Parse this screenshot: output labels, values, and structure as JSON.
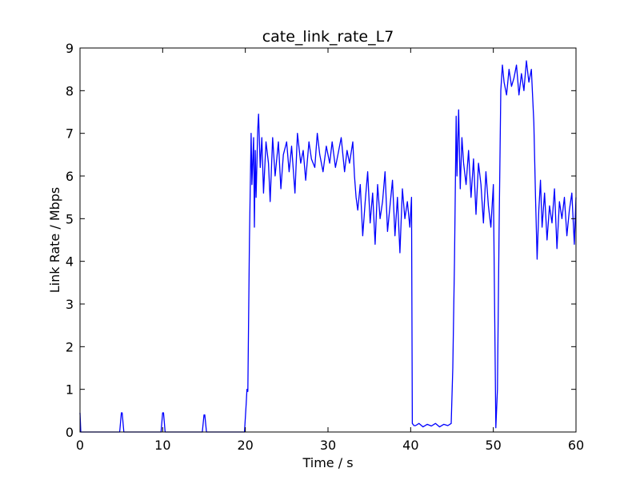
{
  "chart_data": {
    "type": "line",
    "title": "cate_link_rate_L7",
    "xlabel": "Time / s",
    "ylabel": "Link Rate / Mbps",
    "xlim": [
      0,
      60
    ],
    "ylim": [
      0,
      9
    ],
    "xticks": [
      0,
      10,
      20,
      30,
      40,
      50,
      60
    ],
    "yticks": [
      0,
      1,
      2,
      3,
      4,
      5,
      6,
      7,
      8,
      9
    ],
    "grid": false,
    "series": [
      {
        "color": "#0000ff",
        "x": [
          0,
          0.1,
          0.2,
          4.8,
          5.0,
          5.1,
          5.3,
          9.8,
          10.0,
          10.1,
          10.3,
          14.8,
          15.0,
          15.1,
          15.3,
          19.9,
          20.1,
          20.2,
          20.3,
          20.5,
          20.7,
          20.8,
          21.0,
          21.1,
          21.2,
          21.3,
          21.5,
          21.6,
          21.8,
          22.0,
          22.2,
          22.5,
          22.8,
          23.0,
          23.3,
          23.6,
          24.0,
          24.3,
          24.6,
          25.0,
          25.3,
          25.6,
          26.0,
          26.3,
          26.7,
          27.0,
          27.3,
          27.7,
          28.0,
          28.4,
          28.7,
          29.0,
          29.4,
          29.8,
          30.2,
          30.5,
          30.9,
          31.2,
          31.6,
          32.0,
          32.3,
          32.6,
          33.0,
          33.2,
          33.4,
          33.6,
          33.9,
          34.2,
          34.5,
          34.8,
          35.1,
          35.4,
          35.7,
          36.0,
          36.3,
          36.6,
          36.9,
          37.2,
          37.5,
          37.8,
          38.1,
          38.4,
          38.7,
          39.0,
          39.3,
          39.6,
          39.9,
          40.1,
          40.2,
          40.4,
          40.6,
          41.0,
          41.5,
          42.0,
          42.5,
          43.0,
          43.5,
          44.0,
          44.5,
          44.9,
          45.1,
          45.3,
          45.5,
          45.6,
          45.8,
          46.0,
          46.2,
          46.4,
          46.7,
          47.0,
          47.3,
          47.6,
          47.9,
          48.2,
          48.5,
          48.8,
          49.1,
          49.4,
          49.7,
          50.0,
          50.3,
          50.5,
          50.7,
          50.9,
          51.1,
          51.3,
          51.6,
          51.9,
          52.2,
          52.5,
          52.8,
          53.1,
          53.4,
          53.7,
          54.0,
          54.3,
          54.6,
          54.9,
          55.1,
          55.3,
          55.5,
          55.7,
          55.9,
          56.2,
          56.5,
          56.8,
          57.1,
          57.4,
          57.7,
          58.0,
          58.3,
          58.6,
          58.9,
          59.2,
          59.5,
          59.8,
          60
        ],
        "y": [
          0.45,
          0.0,
          0.0,
          0.0,
          0.45,
          0.45,
          0.0,
          0.0,
          0.45,
          0.45,
          0.0,
          0.0,
          0.4,
          0.4,
          0.0,
          0.0,
          0.65,
          1.0,
          0.95,
          4.5,
          7.0,
          5.8,
          6.9,
          4.8,
          6.6,
          5.5,
          7.1,
          7.45,
          6.2,
          6.9,
          5.6,
          6.8,
          6.3,
          5.4,
          6.9,
          6.0,
          6.8,
          5.7,
          6.5,
          6.8,
          6.1,
          6.7,
          5.6,
          7.0,
          6.3,
          6.6,
          5.9,
          6.8,
          6.4,
          6.2,
          7.0,
          6.5,
          6.1,
          6.7,
          6.3,
          6.8,
          6.2,
          6.5,
          6.9,
          6.1,
          6.6,
          6.3,
          6.8,
          6.0,
          5.5,
          5.2,
          5.8,
          4.6,
          5.4,
          6.1,
          4.9,
          5.6,
          4.4,
          5.8,
          5.0,
          5.4,
          6.1,
          4.7,
          5.3,
          5.9,
          4.6,
          5.5,
          4.2,
          5.7,
          5.0,
          5.4,
          4.8,
          5.5,
          0.2,
          0.15,
          0.15,
          0.2,
          0.12,
          0.18,
          0.14,
          0.2,
          0.12,
          0.18,
          0.15,
          0.2,
          1.5,
          4.0,
          7.4,
          6.0,
          7.55,
          5.7,
          6.9,
          6.3,
          5.8,
          6.6,
          5.5,
          6.4,
          5.1,
          6.3,
          5.8,
          4.9,
          6.1,
          5.3,
          4.8,
          5.8,
          0.1,
          1.0,
          4.8,
          8.0,
          8.6,
          8.2,
          7.9,
          8.5,
          8.1,
          8.3,
          8.6,
          7.9,
          8.4,
          8.0,
          8.7,
          8.2,
          8.5,
          7.25,
          5.5,
          4.05,
          5.2,
          5.9,
          4.8,
          5.6,
          4.5,
          5.3,
          4.9,
          5.7,
          4.3,
          5.4,
          5.0,
          5.5,
          4.6,
          5.2,
          5.6,
          4.4,
          5.5
        ]
      }
    ]
  }
}
